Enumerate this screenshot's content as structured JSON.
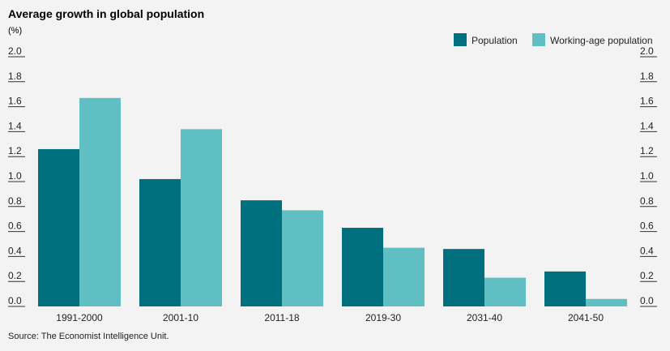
{
  "chart_data": {
    "type": "bar",
    "title": "Average growth in global population",
    "unit_label": "(%)",
    "categories": [
      "1991-2000",
      "2001-10",
      "2011-18",
      "2019-30",
      "2031-40",
      "2041-50"
    ],
    "series": [
      {
        "name": "Population",
        "color": "#00707f",
        "values": [
          1.26,
          1.02,
          0.85,
          0.63,
          0.46,
          0.28
        ]
      },
      {
        "name": "Working-age population",
        "color": "#5fbfc3",
        "values": [
          1.67,
          1.42,
          0.77,
          0.47,
          0.23,
          0.06
        ]
      }
    ],
    "ylim": [
      0,
      2.0
    ],
    "yticks": [
      "2.0",
      "1.8",
      "1.6",
      "1.4",
      "1.2",
      "1.0",
      "0.8",
      "0.6",
      "0.4",
      "0.2",
      "0.0"
    ],
    "grid": false,
    "legend_position": "top-right",
    "source": "Source: The Economist Intelligence Unit."
  }
}
